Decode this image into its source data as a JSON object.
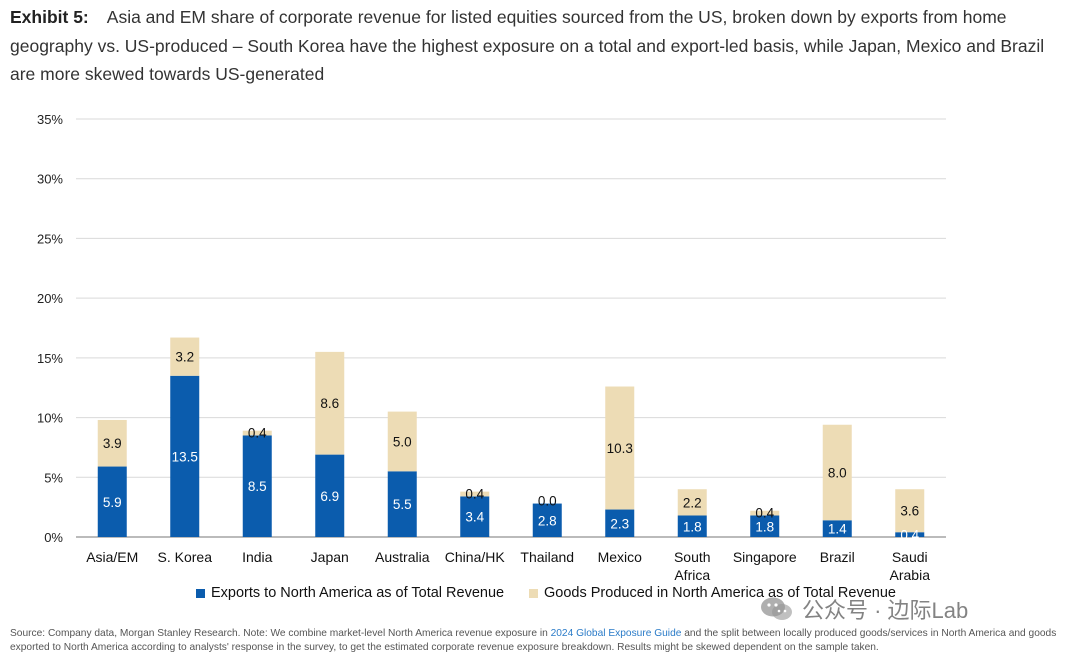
{
  "header": {
    "exhibit_label": "Exhibit 5:",
    "title": "Asia and EM share of corporate revenue for listed equities sourced from the US, broken down by exports from home geography vs. US-produced –  South Korea have the highest exposure on a total and export-led basis, while Japan, Mexico and Brazil are more skewed towards US-generated"
  },
  "chart_data": {
    "type": "bar",
    "stacked": true,
    "categories": [
      [
        "Asia/EM"
      ],
      [
        "S. Korea"
      ],
      [
        "India"
      ],
      [
        "Japan"
      ],
      [
        "Australia"
      ],
      [
        "China/HK"
      ],
      [
        "Thailand"
      ],
      [
        "Mexico"
      ],
      [
        "South",
        "Africa"
      ],
      [
        "Singapore"
      ],
      [
        "Brazil"
      ],
      [
        "Saudi",
        "Arabia"
      ]
    ],
    "series": [
      {
        "name": "Exports to North America as of Total Revenue",
        "color": "#0b5cad",
        "values": [
          5.9,
          13.5,
          8.5,
          6.9,
          5.5,
          3.4,
          2.8,
          2.3,
          1.8,
          1.8,
          1.4,
          0.4
        ]
      },
      {
        "name": "Goods Produced in North America as of Total Revenue",
        "color": "#eddcb5",
        "values": [
          3.9,
          3.2,
          0.4,
          8.6,
          5.0,
          0.4,
          0.0,
          10.3,
          2.2,
          0.4,
          8.0,
          3.6
        ]
      }
    ],
    "yticks": [
      "0%",
      "5%",
      "10%",
      "15%",
      "20%",
      "25%",
      "30%",
      "35%"
    ],
    "ylim": [
      0,
      35
    ],
    "grid": true,
    "legend_position": "bottom"
  },
  "watermark": "公众号 · 边际Lab",
  "source": {
    "before_link": "Source: Company data, Morgan Stanley Research. Note: We combine market-level North America revenue exposure in ",
    "link_text": "2024 Global Exposure Guide",
    "after_link": " and the split between locally produced goods/services in North America and goods exported to North America according to analysts' response in the survey, to get the estimated corporate revenue exposure breakdown. Results might be skewed dependent on the sample taken."
  }
}
